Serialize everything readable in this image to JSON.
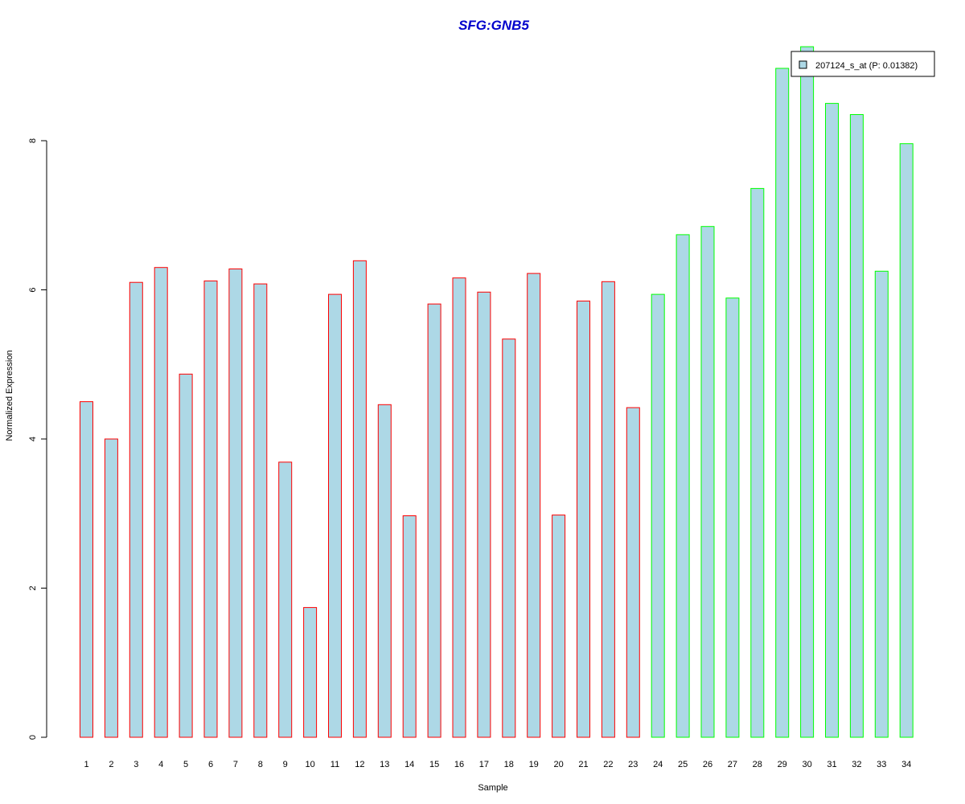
{
  "chart_data": {
    "type": "bar",
    "title": "SFG:GNB5",
    "xlabel": "Sample",
    "ylabel": "Normalized Expression",
    "ylim": [
      0,
      9.3
    ],
    "yticks": [
      0,
      2,
      4,
      6,
      8
    ],
    "categories": [
      "1",
      "2",
      "3",
      "4",
      "5",
      "6",
      "7",
      "8",
      "9",
      "10",
      "11",
      "12",
      "13",
      "14",
      "15",
      "16",
      "17",
      "18",
      "19",
      "20",
      "21",
      "22",
      "23",
      "24",
      "25",
      "26",
      "27",
      "28",
      "29",
      "30",
      "31",
      "32",
      "33",
      "34"
    ],
    "series": [
      {
        "name": "207124_s_at (P: 0.01382)",
        "values": [
          4.5,
          4.0,
          6.1,
          6.3,
          4.87,
          6.12,
          6.28,
          6.08,
          3.69,
          1.74,
          5.94,
          6.39,
          4.46,
          2.97,
          5.81,
          6.16,
          5.97,
          5.34,
          6.22,
          2.98,
          5.85,
          6.11,
          4.42,
          5.94,
          6.74,
          6.85,
          5.89,
          7.36,
          8.97,
          9.26,
          8.5,
          8.35,
          6.25,
          7.96
        ],
        "fill": "#add8e6",
        "group": [
          1,
          1,
          1,
          1,
          1,
          1,
          1,
          1,
          1,
          1,
          1,
          1,
          1,
          1,
          1,
          1,
          1,
          1,
          1,
          1,
          1,
          1,
          1,
          2,
          2,
          2,
          2,
          2,
          2,
          2,
          2,
          2,
          2,
          2
        ]
      }
    ],
    "group_colors": {
      "1": "#ff0000",
      "2": "#00ff00"
    },
    "title_color": "#0000cc",
    "legend": {
      "position": "top-right",
      "label": "207124_s_at (P: 0.01382)"
    },
    "grid": false
  }
}
